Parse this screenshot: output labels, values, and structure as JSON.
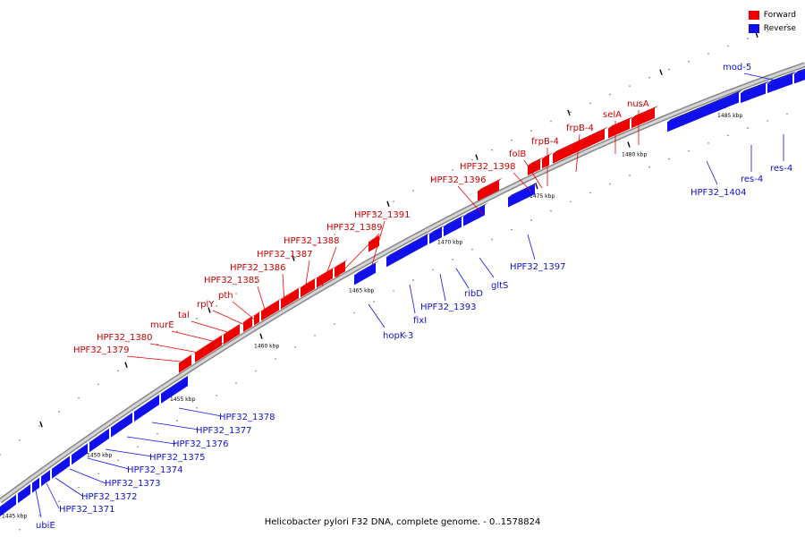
{
  "legend": {
    "forward": {
      "label": "Forward",
      "color": "#ee0000"
    },
    "reverse": {
      "label": "Reverse",
      "color": "#1010ee"
    }
  },
  "caption": "Helicobacter pylori F32 DNA, complete genome. - 0..1578824",
  "scale_labels": [
    "1445 kbp",
    "1450 kbp",
    "1455 kbp",
    "1460 kbp",
    "1465 kbp",
    "1470 kbp",
    "1475 kbp",
    "1480 kbp",
    "1485 kbp"
  ],
  "forward_genes": [
    "HPF32_1379",
    "HPF32_1380",
    "murE",
    "tal",
    "rplY",
    "pth",
    "HPF32_1385",
    "HPF32_1386",
    "HPF32_1387",
    "HPF32_1388",
    "HPF32_1389",
    "HPF32_1391",
    "HPF32_1396",
    "HPF32_1398",
    "folB",
    "frpB-4",
    "frpB-4",
    "selA",
    "nusA"
  ],
  "reverse_genes": [
    "ubiE",
    "HPF32_1371",
    "HPF32_1372",
    "HPF32_1373",
    "HPF32_1374",
    "HPF32_1375",
    "HPF32_1376",
    "HPF32_1377",
    "HPF32_1378",
    "hopK-3",
    "fixI",
    "HPF32_1393",
    "ribD",
    "gltS",
    "HPF32_1397",
    "HPF32_1404",
    "res-4",
    "res-4",
    "mod-5"
  ]
}
